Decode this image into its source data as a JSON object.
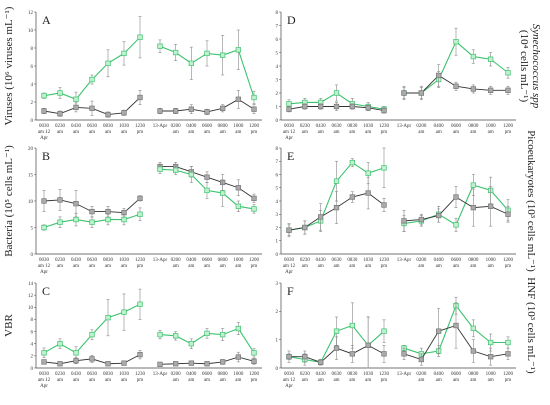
{
  "colors": {
    "green": "#3cc36e",
    "gray": "#333333",
    "gray_fill": "#aaaaaa",
    "err": "#888888"
  },
  "chart_data": [
    {
      "id": "A",
      "type": "line",
      "letter": "A",
      "ylabel_lines": [
        "Viruses (10⁶ viruses mL⁻¹)"
      ],
      "ylim": [
        0,
        12
      ],
      "yticks": [
        0,
        2,
        4,
        6,
        8,
        10,
        12
      ],
      "left": {
        "categories": [
          "0030\nam 12\nApr",
          "0230\nam",
          "0430\nam",
          "0630\nam",
          "0830\nam",
          "1030\nam",
          "1230\npm"
        ],
        "series": [
          {
            "color": "green",
            "values": [
              2.7,
              3.0,
              2.3,
              4.5,
              6.3,
              7.4,
              9.2
            ],
            "err": [
              0.3,
              0.6,
              0.8,
              0.5,
              1.5,
              1.3,
              2.3
            ]
          },
          {
            "color": "gray",
            "values": [
              1.0,
              0.7,
              1.4,
              1.3,
              0.6,
              0.8,
              2.5
            ],
            "err": [
              0.3,
              0.3,
              0.5,
              0.8,
              0.3,
              0.3,
              0.8
            ]
          }
        ]
      },
      "right": {
        "categories": [
          "13-Apr",
          "0200\nam",
          "0400\nam",
          "0600\nam",
          "0800\nam",
          "1000\nam",
          "1200\npm"
        ],
        "series": [
          {
            "color": "green",
            "values": [
              8.2,
              7.5,
              6.3,
              7.4,
              7.2,
              7.8,
              2.5
            ],
            "err": [
              0.7,
              0.9,
              1.8,
              1.4,
              2.2,
              2.2,
              0.7
            ]
          },
          {
            "color": "gray",
            "values": [
              1.0,
              1.0,
              1.2,
              0.9,
              1.3,
              2.3,
              1.2
            ],
            "err": [
              0.3,
              0.3,
              0.5,
              0.3,
              0.4,
              1.0,
              0.5
            ]
          }
        ]
      }
    },
    {
      "id": "B",
      "type": "line",
      "letter": "B",
      "ylabel_lines": [
        "Bacteria (10⁵ cells mL⁻¹)"
      ],
      "ylim": [
        0,
        20
      ],
      "yticks": [
        0,
        5,
        10,
        15,
        20
      ],
      "left": {
        "categories": [
          "0030\nam 12\nApr",
          "0230\nam",
          "0430\nam",
          "0630\nam",
          "0830\nam",
          "1030\nam",
          "1230\npm"
        ],
        "series": [
          {
            "color": "gray",
            "values": [
              10.0,
              10.2,
              9.5,
              8.0,
              8.0,
              7.8,
              10.5
            ],
            "err": [
              2.0,
              2.0,
              2.5,
              1.0,
              1.0,
              0.8,
              0.5
            ]
          },
          {
            "color": "green",
            "values": [
              5.0,
              6.0,
              6.5,
              6.0,
              6.5,
              6.5,
              7.5
            ],
            "err": [
              0.5,
              1.0,
              1.2,
              1.0,
              1.0,
              1.0,
              1.2
            ]
          }
        ]
      },
      "right": {
        "categories": [
          "13-Apr",
          "0200\nam",
          "0400\nam",
          "0600\nam",
          "0800\nam",
          "1000\nam",
          "1200\npm"
        ],
        "series": [
          {
            "color": "gray",
            "values": [
              16.5,
              16.5,
              15.5,
              14.5,
              13.5,
              12.5,
              10.5
            ],
            "err": [
              0.8,
              0.8,
              1.0,
              1.0,
              1.5,
              1.5,
              0.8
            ]
          },
          {
            "color": "green",
            "values": [
              16.0,
              15.8,
              15.0,
              12.0,
              11.5,
              9.0,
              8.5
            ],
            "err": [
              0.8,
              0.8,
              1.5,
              1.5,
              2.5,
              1.0,
              0.8
            ]
          }
        ]
      }
    },
    {
      "id": "C",
      "type": "line",
      "letter": "C",
      "ylabel_lines": [
        "VBR"
      ],
      "ylim": [
        0,
        14
      ],
      "yticks": [
        0,
        2,
        4,
        6,
        8,
        10,
        12,
        14
      ],
      "left": {
        "categories": [
          "0030\nam 12\nApr",
          "0230\nam",
          "0430\nam",
          "0630\nam",
          "0830\nam",
          "1030\nam",
          "1230\npm"
        ],
        "series": [
          {
            "color": "green",
            "values": [
              2.5,
              4.0,
              2.5,
              5.5,
              8.3,
              9.2,
              10.5
            ],
            "err": [
              0.8,
              0.8,
              1.0,
              0.8,
              3.0,
              3.0,
              2.5
            ]
          },
          {
            "color": "gray",
            "values": [
              1.0,
              0.7,
              1.2,
              1.5,
              0.7,
              0.8,
              2.2
            ],
            "err": [
              0.3,
              0.3,
              0.5,
              0.6,
              0.3,
              0.3,
              0.7
            ]
          }
        ]
      },
      "right": {
        "categories": [
          "13-Apr",
          "0200\nam",
          "0400\nam",
          "0600\nam",
          "0800\nam",
          "1000\nam",
          "1200\npm"
        ],
        "series": [
          {
            "color": "green",
            "values": [
              5.5,
              5.3,
              4.0,
              5.7,
              5.5,
              6.5,
              2.5
            ],
            "err": [
              0.7,
              0.7,
              0.8,
              0.8,
              1.0,
              1.0,
              0.7
            ]
          },
          {
            "color": "gray",
            "values": [
              0.6,
              0.7,
              0.8,
              0.7,
              1.0,
              1.8,
              1.1
            ],
            "err": [
              0.2,
              0.3,
              0.3,
              0.3,
              0.4,
              0.8,
              0.5
            ]
          }
        ]
      }
    },
    {
      "id": "D",
      "type": "line",
      "letter": "D",
      "ylabel_lines": [
        "Synechococcus spp",
        "(10⁴ cells mL⁻¹)"
      ],
      "ylim": [
        0,
        8
      ],
      "yticks": [
        0,
        1,
        2,
        3,
        4,
        5,
        6,
        7,
        8
      ],
      "left": {
        "categories": [
          "0030\nam 12\nApr",
          "0230\nam",
          "0430\nam",
          "0630\nam",
          "0830\nam",
          "1030\nam",
          "1230\npm"
        ],
        "series": [
          {
            "color": "green",
            "values": [
              1.2,
              1.3,
              1.3,
              2.0,
              1.2,
              1.0,
              0.8
            ],
            "err": [
              0.3,
              0.3,
              0.3,
              0.6,
              0.4,
              0.3,
              0.2
            ]
          },
          {
            "color": "gray",
            "values": [
              0.8,
              1.0,
              1.0,
              1.0,
              1.0,
              0.9,
              0.7
            ],
            "err": [
              0.2,
              0.2,
              0.2,
              0.3,
              0.2,
              0.2,
              0.2
            ]
          }
        ]
      },
      "right": {
        "categories": [
          "13-Apr",
          "0200\nam",
          "0400\nam",
          "0600\nam",
          "0800\nam",
          "1000\nam",
          "1200\npm"
        ],
        "series": [
          {
            "color": "green",
            "values": [
              2.0,
              2.0,
              3.0,
              5.8,
              4.7,
              4.5,
              3.5
            ],
            "err": [
              0.4,
              0.4,
              0.6,
              1.0,
              0.5,
              0.5,
              0.4
            ]
          },
          {
            "color": "gray",
            "values": [
              2.0,
              2.0,
              3.3,
              2.5,
              2.3,
              2.2,
              2.2
            ],
            "err": [
              0.5,
              0.5,
              0.8,
              0.3,
              0.3,
              0.3,
              0.3
            ]
          }
        ]
      }
    },
    {
      "id": "E",
      "type": "line",
      "letter": "E",
      "ylabel_lines": [
        "Picoeukaryotes (10³ cells mL⁻¹)"
      ],
      "ylim": [
        0,
        8
      ],
      "yticks": [
        0,
        1,
        2,
        3,
        4,
        5,
        6,
        7,
        8
      ],
      "left": {
        "categories": [
          "0030\nam 12\nApr",
          "0230\nam",
          "0430\nam",
          "0630\nam",
          "0830\nam",
          "1030\nam",
          "1230\npm"
        ],
        "series": [
          {
            "color": "green",
            "values": [
              1.8,
              2.0,
              2.5,
              5.5,
              6.9,
              6.1,
              6.5
            ],
            "err": [
              0.4,
              0.5,
              0.8,
              1.5,
              0.3,
              0.8,
              1.5
            ]
          },
          {
            "color": "gray",
            "values": [
              1.8,
              2.0,
              2.8,
              3.5,
              4.3,
              4.6,
              3.7
            ],
            "err": [
              0.5,
              0.5,
              1.0,
              1.2,
              0.4,
              1.2,
              0.5
            ]
          }
        ]
      },
      "right": {
        "categories": [
          "13-Apr",
          "0200\nam",
          "0400\nam",
          "0600\nam",
          "0800\nam",
          "1000\nam",
          "1200\npm"
        ],
        "series": [
          {
            "color": "green",
            "values": [
              2.3,
              2.5,
              3.0,
              2.2,
              5.2,
              4.8,
              3.3
            ],
            "err": [
              0.6,
              0.4,
              0.6,
              0.5,
              0.8,
              1.0,
              0.8
            ]
          },
          {
            "color": "gray",
            "values": [
              2.5,
              2.6,
              2.9,
              4.3,
              3.5,
              3.6,
              3.0
            ],
            "err": [
              0.8,
              0.4,
              0.5,
              0.8,
              1.4,
              1.5,
              0.6
            ]
          }
        ]
      }
    },
    {
      "id": "F",
      "type": "line",
      "letter": "F",
      "ylabel_lines": [
        "HNF (10³ cells mL⁻¹)"
      ],
      "ylim": [
        0,
        3
      ],
      "yticks": [
        0,
        1,
        2,
        3
      ],
      "left": {
        "categories": [
          "0030\nam 12\nApr",
          "0230\nam",
          "0430\nam",
          "0630\nam",
          "0830\nam",
          "1030\nam",
          "1230\npm"
        ],
        "series": [
          {
            "color": "green",
            "values": [
              0.4,
              0.3,
              0.2,
              1.3,
              1.5,
              0.8,
              1.3
            ],
            "err": [
              0.1,
              0.2,
              0.1,
              0.5,
              0.8,
              1.0,
              0.4
            ]
          },
          {
            "color": "gray",
            "values": [
              0.4,
              0.4,
              0.2,
              0.7,
              0.5,
              0.8,
              0.5
            ],
            "err": [
              0.2,
              0.2,
              0.1,
              0.4,
              0.3,
              1.0,
              0.3
            ]
          }
        ]
      },
      "right": {
        "categories": [
          "13-Apr",
          "0200\nam",
          "0400\nam",
          "0600\nam",
          "0800\nam",
          "1000\nam",
          "1200\npm"
        ],
        "series": [
          {
            "color": "green",
            "values": [
              0.7,
              0.5,
              0.6,
              2.2,
              1.4,
              0.9,
              0.9
            ],
            "err": [
              0.1,
              0.2,
              0.2,
              0.3,
              0.3,
              0.3,
              0.2
            ]
          },
          {
            "color": "gray",
            "values": [
              0.5,
              0.3,
              1.3,
              1.5,
              0.6,
              0.4,
              0.5
            ],
            "err": [
              0.2,
              0.2,
              0.8,
              0.8,
              0.4,
              0.3,
              0.2
            ]
          }
        ]
      }
    }
  ]
}
